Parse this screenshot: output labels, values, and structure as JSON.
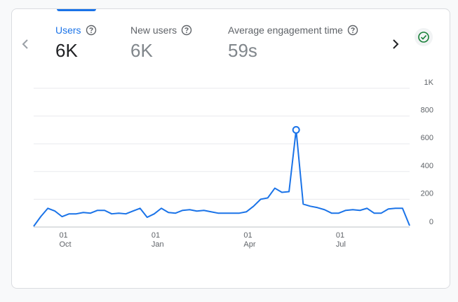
{
  "metrics": [
    {
      "label": "Users",
      "value": "6K",
      "active": true
    },
    {
      "label": "New users",
      "value": "6K",
      "active": false
    },
    {
      "label": "Average engagement time",
      "value": "59s",
      "active": false
    }
  ],
  "icons": {
    "prev": "chevron-left-icon",
    "next": "chevron-right-icon",
    "help": "help-circle-icon",
    "status": "check-circle-icon"
  },
  "colors": {
    "accent": "#1a73e8",
    "status": "#188038"
  },
  "chart_data": {
    "type": "line",
    "series": [
      {
        "values": [
          5,
          75,
          135,
          115,
          75,
          95,
          95,
          105,
          100,
          120,
          120,
          95,
          100,
          95,
          115,
          135,
          70,
          95,
          135,
          105,
          100,
          120,
          125,
          115,
          120,
          110,
          100,
          100,
          100,
          100,
          110,
          150,
          200,
          210,
          280,
          250,
          255,
          700,
          165,
          150,
          140,
          125,
          100,
          100,
          120,
          125,
          120,
          135,
          100,
          100,
          130,
          135,
          135,
          10
        ]
      }
    ],
    "x_tick_labels": [
      {
        "day": "01",
        "month": "Oct",
        "index": 4
      },
      {
        "day": "01",
        "month": "Jan",
        "index": 17
      },
      {
        "day": "01",
        "month": "Apr",
        "index": 30
      },
      {
        "day": "01",
        "month": "Jul",
        "index": 43
      }
    ],
    "y_ticks": [
      {
        "value": 0,
        "label": "0"
      },
      {
        "value": 200,
        "label": "200"
      },
      {
        "value": 400,
        "label": "400"
      },
      {
        "value": 600,
        "label": "600"
      },
      {
        "value": 800,
        "label": "800"
      },
      {
        "value": 1000,
        "label": "1K"
      }
    ],
    "ylim": [
      0,
      1000
    ],
    "grid": true,
    "highlight_index": 37
  }
}
